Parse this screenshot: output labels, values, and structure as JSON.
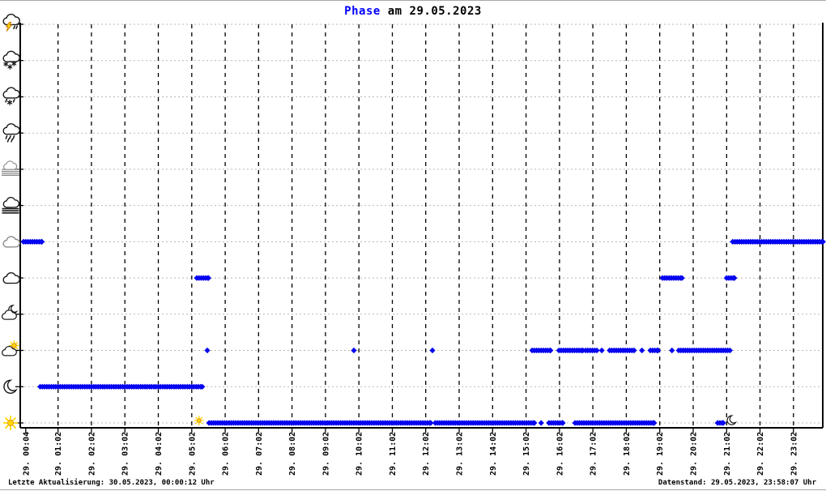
{
  "title": {
    "highlight": "Phase",
    "rest": " am 29.05.2023"
  },
  "footer": {
    "left": "Letzte Aktualisierung: 30.05.2023, 00:00:12 Uhr",
    "right": "Datenstand: 29.05.2023, 23:58:07 Uhr"
  },
  "colors": {
    "point_blue": "#0505f0",
    "title_blue": "#0000ff",
    "grid_horizontal": "#b8b8b8",
    "grid_vertical": "#000000",
    "axis": "#000000",
    "icon_black": "#151515",
    "icon_gray": "#8a8a8a",
    "sun_yellow": "#ffd800",
    "sun_orange": "#e89000",
    "bolt_orange": "#c87800"
  },
  "chart_data": {
    "type": "scatter",
    "title": "Phase am 29.05.2023",
    "point_interval_minutes": 4,
    "x_axis": {
      "tick_labels": [
        "29. 00:04",
        "29. 01:02",
        "29. 02:02",
        "29. 03:02",
        "29. 04:02",
        "29. 05:02",
        "29. 06:02",
        "29. 07:02",
        "29. 08:02",
        "29. 09:02",
        "29. 10:02",
        "29. 11:02",
        "29. 12:02",
        "29. 13:02",
        "29. 14:02",
        "29. 15:02",
        "29. 16:02",
        "29. 17:02",
        "29. 18:02",
        "29. 19:02",
        "29. 20:02",
        "29. 21:02",
        "29. 22:02",
        "29. 23:02"
      ],
      "tick_minutes": [
        4,
        62,
        122,
        182,
        242,
        302,
        362,
        422,
        482,
        542,
        602,
        662,
        722,
        782,
        842,
        902,
        962,
        1022,
        1082,
        1142,
        1202,
        1262,
        1322,
        1382
      ]
    },
    "y_axis": {
      "levels_bottom_to_top": [
        {
          "id": "sunny",
          "icon": "sun-icon"
        },
        {
          "id": "clear-night",
          "icon": "moon-icon"
        },
        {
          "id": "partly-cloudy",
          "icon": "sun-behind-cloud-icon"
        },
        {
          "id": "cloudy-night",
          "icon": "moon-behind-cloud-icon"
        },
        {
          "id": "cloudy",
          "icon": "cloud-icon"
        },
        {
          "id": "overcast",
          "icon": "gray-cloud-icon"
        },
        {
          "id": "fog",
          "icon": "fog-icon"
        },
        {
          "id": "mist",
          "icon": "mist-icon"
        },
        {
          "id": "rain",
          "icon": "rain-cloud-icon"
        },
        {
          "id": "sleet",
          "icon": "sleet-cloud-icon"
        },
        {
          "id": "snow",
          "icon": "snow-cloud-icon"
        },
        {
          "id": "thunderstorm",
          "icon": "thunderstorm-cloud-icon"
        }
      ]
    },
    "segments": [
      {
        "level": "overcast",
        "start": "00:00",
        "end": "00:33"
      },
      {
        "level": "clear-night",
        "start": "00:30",
        "end": "05:21"
      },
      {
        "level": "cloudy",
        "start": "05:11",
        "end": "05:32"
      },
      {
        "level": "partly-cloudy",
        "start": "05:30",
        "end": "05:30"
      },
      {
        "level": "sunny",
        "start": "05:33",
        "end": "12:11"
      },
      {
        "level": "partly-cloudy",
        "start": "09:53",
        "end": "09:53"
      },
      {
        "level": "partly-cloudy",
        "start": "12:14",
        "end": "12:14"
      },
      {
        "level": "sunny",
        "start": "12:19",
        "end": "15:17"
      },
      {
        "level": "sunny",
        "start": "15:29",
        "end": "15:29"
      },
      {
        "level": "partly-cloudy",
        "start": "15:13",
        "end": "15:46"
      },
      {
        "level": "sunny",
        "start": "15:43",
        "end": "16:08"
      },
      {
        "level": "partly-cloudy",
        "start": "16:01",
        "end": "16:44"
      },
      {
        "level": "sunny",
        "start": "16:30",
        "end": "18:52"
      },
      {
        "level": "partly-cloudy",
        "start": "16:49",
        "end": "17:09"
      },
      {
        "level": "partly-cloudy",
        "start": "17:18",
        "end": "17:18"
      },
      {
        "level": "partly-cloudy",
        "start": "17:32",
        "end": "18:16"
      },
      {
        "level": "partly-cloudy",
        "start": "18:30",
        "end": "18:30"
      },
      {
        "level": "partly-cloudy",
        "start": "18:45",
        "end": "18:59"
      },
      {
        "level": "cloudy",
        "start": "19:07",
        "end": "19:42"
      },
      {
        "level": "partly-cloudy",
        "start": "19:24",
        "end": "19:24"
      },
      {
        "level": "partly-cloudy",
        "start": "19:36",
        "end": "21:08"
      },
      {
        "level": "sunny",
        "start": "20:46",
        "end": "20:56"
      },
      {
        "level": "cloudy",
        "start": "21:02",
        "end": "21:16"
      },
      {
        "level": "overcast",
        "start": "21:13",
        "end": "23:55"
      }
    ],
    "markers": [
      {
        "id": "sunrise",
        "icon": "sunrise-sun-icon",
        "time": "05:15"
      },
      {
        "id": "sunset",
        "icon": "sunset-moon-icon",
        "time": "21:12"
      }
    ]
  }
}
